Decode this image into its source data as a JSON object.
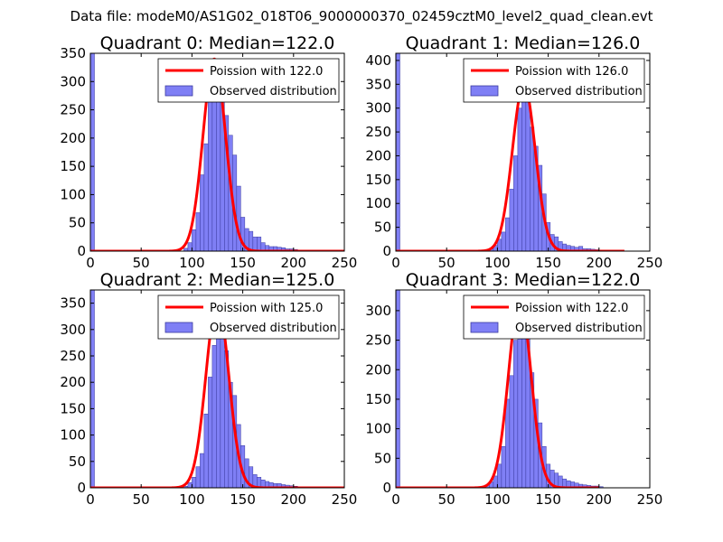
{
  "figure": {
    "suptitle": "Data file: modeM0/AS1G02_018T06_9000000370_02459cztM0_level2_quad_clean.evt"
  },
  "colors": {
    "hist_fill": "#7f7ff5",
    "hist_edge": "#3a3aa0",
    "poisson": "#ff0000"
  },
  "chart_data": [
    {
      "type": "bar",
      "title": "Quadrant 0: Median=122.0",
      "xlim": [
        0,
        250
      ],
      "ylim": [
        0,
        350
      ],
      "xticks": [
        0,
        50,
        100,
        150,
        200,
        250
      ],
      "yticks": [
        0,
        50,
        100,
        150,
        200,
        250,
        300,
        350
      ],
      "legend": {
        "placement": "top-right",
        "entries": [
          "Poission with 122.0",
          "Observed distribution"
        ]
      },
      "histogram": {
        "name": "Observed distribution",
        "bin_width": 4,
        "bins": [
          [
            0,
            350
          ],
          [
            92,
            5
          ],
          [
            96,
            15
          ],
          [
            100,
            38
          ],
          [
            104,
            68
          ],
          [
            108,
            135
          ],
          [
            112,
            190
          ],
          [
            116,
            290
          ],
          [
            120,
            335
          ],
          [
            124,
            320
          ],
          [
            128,
            285
          ],
          [
            132,
            240
          ],
          [
            136,
            205
          ],
          [
            140,
            170
          ],
          [
            144,
            115
          ],
          [
            148,
            60
          ],
          [
            152,
            40
          ],
          [
            156,
            35
          ],
          [
            160,
            25
          ],
          [
            164,
            25
          ],
          [
            168,
            15
          ],
          [
            172,
            10
          ],
          [
            176,
            8
          ],
          [
            180,
            8
          ],
          [
            184,
            7
          ],
          [
            188,
            6
          ],
          [
            192,
            4
          ],
          [
            196,
            4
          ],
          [
            200,
            3
          ],
          [
            204,
            2
          ]
        ]
      },
      "poisson": {
        "name": "Poission with 122.0",
        "mu": 122.0,
        "peak": 340,
        "x_range": [
          0,
          250
        ]
      }
    },
    {
      "type": "bar",
      "title": "Quadrant 1: Median=126.0",
      "xlim": [
        0,
        250
      ],
      "ylim": [
        0,
        415
      ],
      "xticks": [
        0,
        50,
        100,
        150,
        200,
        250
      ],
      "yticks": [
        0,
        50,
        100,
        150,
        200,
        250,
        300,
        350,
        400
      ],
      "legend": {
        "placement": "top-right",
        "entries": [
          "Poission with 126.0",
          "Observed distribution"
        ]
      },
      "histogram": {
        "name": "Observed distribution",
        "bin_width": 4,
        "bins": [
          [
            0,
            415
          ],
          [
            92,
            5
          ],
          [
            96,
            12
          ],
          [
            100,
            25
          ],
          [
            104,
            40
          ],
          [
            108,
            70
          ],
          [
            112,
            130
          ],
          [
            116,
            200
          ],
          [
            120,
            300
          ],
          [
            124,
            370
          ],
          [
            128,
            350
          ],
          [
            132,
            260
          ],
          [
            136,
            220
          ],
          [
            140,
            180
          ],
          [
            144,
            120
          ],
          [
            148,
            60
          ],
          [
            152,
            35
          ],
          [
            156,
            30
          ],
          [
            160,
            20
          ],
          [
            164,
            15
          ],
          [
            168,
            12
          ],
          [
            172,
            10
          ],
          [
            176,
            8
          ],
          [
            180,
            10
          ],
          [
            184,
            5
          ],
          [
            188,
            5
          ],
          [
            192,
            4
          ],
          [
            196,
            3
          ],
          [
            200,
            2
          ]
        ]
      },
      "poisson": {
        "name": "Poission with 126.0",
        "mu": 126.0,
        "peak": 350,
        "x_range": [
          0,
          225
        ]
      }
    },
    {
      "type": "bar",
      "title": "Quadrant 2: Median=125.0",
      "xlim": [
        0,
        250
      ],
      "ylim": [
        0,
        375
      ],
      "xticks": [
        0,
        50,
        100,
        150,
        200,
        250
      ],
      "yticks": [
        0,
        50,
        100,
        150,
        200,
        250,
        300,
        350
      ],
      "legend": {
        "placement": "top-right",
        "entries": [
          "Poission with 125.0",
          "Observed distribution"
        ]
      },
      "histogram": {
        "name": "Observed distribution",
        "bin_width": 4,
        "bins": [
          [
            0,
            375
          ],
          [
            92,
            3
          ],
          [
            96,
            10
          ],
          [
            100,
            20
          ],
          [
            104,
            40
          ],
          [
            108,
            65
          ],
          [
            112,
            140
          ],
          [
            116,
            210
          ],
          [
            120,
            270
          ],
          [
            124,
            350
          ],
          [
            128,
            330
          ],
          [
            132,
            260
          ],
          [
            136,
            200
          ],
          [
            140,
            175
          ],
          [
            144,
            120
          ],
          [
            148,
            80
          ],
          [
            152,
            55
          ],
          [
            156,
            40
          ],
          [
            160,
            25
          ],
          [
            164,
            20
          ],
          [
            168,
            15
          ],
          [
            172,
            12
          ],
          [
            176,
            10
          ],
          [
            180,
            8
          ],
          [
            184,
            8
          ],
          [
            188,
            6
          ],
          [
            192,
            5
          ],
          [
            196,
            4
          ],
          [
            200,
            3
          ]
        ]
      },
      "poisson": {
        "name": "Poission with 125.0",
        "mu": 125.0,
        "peak": 355,
        "x_range": [
          0,
          250
        ]
      }
    },
    {
      "type": "bar",
      "title": "Quadrant 3: Median=122.0",
      "xlim": [
        0,
        250
      ],
      "ylim": [
        0,
        335
      ],
      "xticks": [
        0,
        50,
        100,
        150,
        200,
        250
      ],
      "yticks": [
        0,
        50,
        100,
        150,
        200,
        250,
        300
      ],
      "legend": {
        "placement": "top-right",
        "entries": [
          "Poission with 122.0",
          "Observed distribution"
        ]
      },
      "histogram": {
        "name": "Observed distribution",
        "bin_width": 4,
        "bins": [
          [
            0,
            335
          ],
          [
            88,
            5
          ],
          [
            92,
            10
          ],
          [
            96,
            20
          ],
          [
            100,
            40
          ],
          [
            104,
            70
          ],
          [
            108,
            150
          ],
          [
            112,
            190
          ],
          [
            116,
            250
          ],
          [
            120,
            300
          ],
          [
            124,
            310
          ],
          [
            128,
            285
          ],
          [
            132,
            195
          ],
          [
            136,
            150
          ],
          [
            140,
            110
          ],
          [
            144,
            70
          ],
          [
            148,
            40
          ],
          [
            152,
            30
          ],
          [
            156,
            25
          ],
          [
            160,
            20
          ],
          [
            164,
            15
          ],
          [
            168,
            12
          ],
          [
            172,
            10
          ],
          [
            176,
            8
          ],
          [
            180,
            6
          ],
          [
            184,
            5
          ],
          [
            188,
            4
          ],
          [
            192,
            3
          ],
          [
            196,
            3
          ],
          [
            200,
            2
          ]
        ]
      },
      "poisson": {
        "name": "Poission with 122.0",
        "mu": 122.0,
        "peak": 320,
        "x_range": [
          0,
          200
        ]
      }
    }
  ]
}
